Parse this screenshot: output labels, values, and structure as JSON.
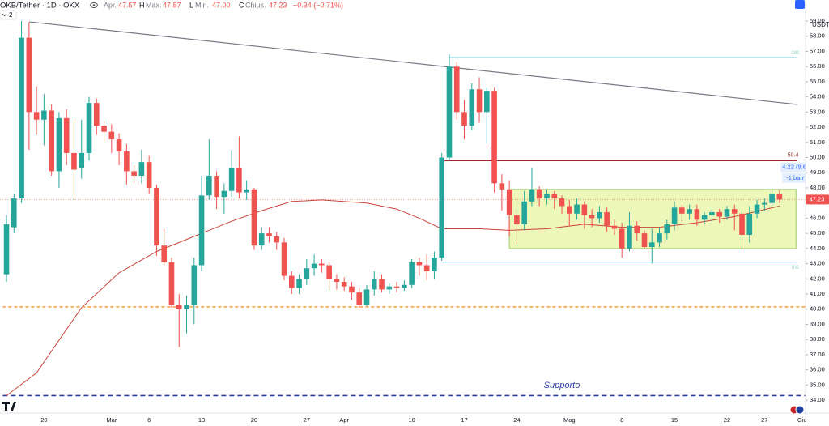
{
  "header": {
    "symbol": "OKB/Tether · 1D · OKX",
    "open_label": "Apr.",
    "high_letter": "H",
    "high_label": "Max.",
    "low_letter": "L",
    "low_label": "Min.",
    "low": "47.00",
    "close_letter": "C",
    "close_label": "Chius.",
    "change": "−0.34 (−0.71%)",
    "indicators": "2"
  },
  "chart_data": {
    "type": "candlestick",
    "currency": "USDT",
    "categories": [
      null,
      null,
      null,
      null,
      null,
      "20",
      null,
      null,
      null,
      null,
      null,
      null,
      null,
      null,
      "Mar",
      null,
      null,
      null,
      null,
      "6",
      null,
      null,
      null,
      null,
      null,
      null,
      "13",
      null,
      null,
      null,
      null,
      null,
      null,
      "20",
      null,
      null,
      null,
      null,
      null,
      null,
      "27",
      null,
      null,
      null,
      null,
      "Apr",
      null,
      null,
      null,
      null,
      null,
      null,
      null,
      null,
      "10",
      null,
      null,
      null,
      null,
      null,
      null,
      "17",
      null,
      null,
      null,
      null,
      null,
      null,
      "24",
      null,
      null,
      null,
      null,
      null,
      null,
      "Mag",
      null,
      null,
      null,
      null,
      null,
      null,
      "8",
      null,
      null,
      null,
      null,
      null,
      null,
      "15",
      null,
      null,
      null,
      null,
      null,
      null,
      "22",
      null,
      null,
      null,
      null,
      "27",
      null,
      null,
      null,
      null,
      "Giu"
    ],
    "open": [
      42.3,
      45.4,
      47.3,
      57.9,
      53.0,
      52.5,
      53.1,
      49.1,
      52.6,
      50.3,
      49.3,
      50.3,
      53.6,
      52.1,
      51.7,
      51.2,
      50.4,
      49.1,
      48.8,
      49.7,
      48.0,
      44.2,
      43.1,
      40.3,
      40.0,
      40.3,
      42.9,
      47.5,
      48.8,
      47.4,
      47.8,
      49.3,
      47.7,
      47.9,
      44.2,
      45.0,
      44.8,
      44.4,
      42.2,
      41.4,
      42.0,
      42.7,
      43.0,
      42.9,
      42.0,
      41.8,
      41.5,
      41.1,
      40.3,
      41.3,
      42.0,
      41.3,
      41.5,
      41.4,
      41.6,
      43.1,
      42.9,
      42.5,
      43.4,
      50.0,
      56.0,
      53.0,
      52.1,
      54.5,
      53.0,
      54.4,
      48.3,
      47.9,
      46.2,
      45.6,
      47.1,
      47.9,
      47.3,
      47.6,
      47.3,
      46.8,
      46.3,
      46.9,
      46.2,
      46.0,
      46.4,
      45.5,
      45.3,
      44.0,
      45.5,
      45.0,
      44.1,
      44.4,
      45.0,
      45.6,
      46.7,
      46.3,
      46.6,
      45.9,
      46.2,
      46.4,
      46.1,
      46.6,
      46.3,
      44.9,
      46.3,
      46.9,
      47.0,
      47.57,
      null,
      null,
      null
    ],
    "high": [
      46.2,
      47.6,
      59.0,
      58.9,
      54.7,
      54.2,
      53.5,
      53.0,
      53.2,
      52.6,
      52.5,
      54.0,
      53.9,
      52.4,
      52.2,
      51.6,
      50.9,
      49.5,
      50.5,
      50.1,
      48.2,
      45.3,
      43.4,
      41.0,
      40.9,
      43.4,
      48.8,
      51.2,
      49.1,
      48.3,
      50.5,
      51.4,
      48.5,
      48.0,
      45.4,
      45.4,
      45.1,
      44.7,
      42.5,
      42.3,
      43.3,
      43.6,
      43.3,
      43.1,
      42.3,
      42.1,
      41.8,
      41.4,
      41.6,
      42.5,
      42.3,
      41.7,
      41.8,
      41.9,
      43.3,
      43.4,
      43.6,
      43.8,
      50.3,
      56.8,
      56.3,
      53.8,
      54.9,
      55.3,
      54.6,
      54.6,
      48.9,
      48.5,
      46.7,
      47.8,
      49.3,
      48.1,
      47.9,
      47.8,
      47.5,
      47.2,
      47.3,
      47.1,
      46.6,
      46.8,
      46.7,
      45.9,
      45.7,
      46.4,
      45.8,
      45.2,
      45.3,
      45.4,
      45.9,
      47.1,
      46.9,
      46.9,
      46.9,
      46.4,
      46.6,
      46.6,
      46.8,
      46.9,
      46.5,
      46.8,
      47.2,
      47.3,
      48.0,
      47.87,
      null,
      null,
      null
    ],
    "low": [
      41.8,
      45.0,
      47.0,
      50.5,
      51.5,
      50.8,
      48.8,
      48.0,
      49.5,
      47.2,
      48.6,
      49.8,
      51.5,
      51.0,
      50.3,
      49.5,
      48.2,
      48.3,
      48.3,
      47.6,
      43.5,
      42.9,
      40.1,
      37.5,
      38.4,
      39.0,
      42.5,
      47.2,
      46.6,
      46.3,
      47.4,
      47.3,
      47.2,
      43.9,
      43.9,
      44.4,
      43.9,
      41.9,
      41.0,
      41.0,
      41.6,
      42.2,
      42.4,
      41.2,
      41.3,
      41.2,
      40.6,
      40.1,
      40.2,
      40.9,
      41.1,
      41.0,
      41.1,
      41.2,
      41.4,
      42.2,
      41.9,
      42.0,
      43.2,
      49.8,
      52.5,
      51.2,
      51.8,
      52.3,
      50.9,
      47.7,
      46.5,
      44.8,
      44.3,
      45.2,
      46.8,
      46.8,
      46.9,
      46.6,
      46.3,
      45.5,
      45.9,
      45.3,
      45.4,
      45.7,
      45.1,
      44.9,
      43.4,
      43.8,
      44.5,
      44.0,
      43.0,
      44.1,
      44.6,
      45.2,
      45.8,
      45.9,
      45.5,
      45.6,
      45.8,
      45.7,
      45.9,
      45.2,
      44.0,
      44.4,
      46.0,
      46.5,
      46.8,
      47.0,
      null,
      null,
      null
    ],
    "close": [
      45.6,
      47.3,
      57.9,
      53.0,
      52.5,
      53.1,
      49.1,
      52.6,
      50.3,
      49.2,
      50.3,
      53.6,
      52.1,
      51.7,
      51.2,
      50.4,
      49.1,
      48.8,
      49.7,
      48.0,
      44.2,
      43.1,
      40.3,
      40.0,
      40.3,
      42.9,
      47.5,
      48.8,
      47.4,
      47.8,
      49.3,
      47.7,
      47.9,
      44.2,
      45.0,
      44.8,
      44.4,
      42.2,
      41.4,
      42.0,
      42.7,
      43.0,
      42.9,
      42.0,
      41.8,
      41.5,
      41.1,
      40.3,
      41.3,
      42.0,
      41.3,
      41.5,
      41.4,
      41.6,
      43.1,
      42.9,
      42.5,
      43.4,
      50.0,
      56.0,
      53.0,
      52.1,
      54.5,
      53.0,
      54.4,
      48.3,
      47.9,
      46.2,
      45.6,
      47.1,
      47.9,
      47.3,
      47.6,
      47.3,
      46.8,
      46.3,
      46.9,
      46.2,
      46.0,
      46.4,
      45.5,
      45.3,
      44.0,
      45.5,
      45.0,
      44.1,
      44.4,
      45.0,
      45.6,
      46.7,
      46.3,
      46.6,
      45.9,
      46.2,
      46.4,
      46.1,
      46.6,
      46.3,
      44.9,
      46.3,
      46.9,
      47.0,
      47.6,
      47.23,
      null,
      null,
      null
    ],
    "up_color": "#26a69a",
    "down_color": "#ef5350",
    "ylim": [
      33.15,
      60.39
    ],
    "yticks": [
      {
        "value": 34,
        "label": "34.00"
      },
      {
        "value": 35,
        "label": "35.00"
      },
      {
        "value": 36,
        "label": "36.00"
      },
      {
        "value": 37,
        "label": "37.00"
      },
      {
        "value": 38,
        "label": "38.00"
      },
      {
        "value": 39,
        "label": "39.00"
      },
      {
        "value": 40,
        "label": "40.00"
      },
      {
        "value": 41,
        "label": "41.00"
      },
      {
        "value": 42,
        "label": "42.00"
      },
      {
        "value": 43,
        "label": "43.00"
      },
      {
        "value": 44,
        "label": "44.00"
      },
      {
        "value": 45,
        "label": "45.00"
      },
      {
        "value": 46,
        "label": "46.00"
      },
      {
        "value": 47,
        "label": "47.00"
      },
      {
        "value": 48,
        "label": "48.00"
      },
      {
        "value": 49,
        "label": "49.00"
      },
      {
        "value": 50,
        "label": "50.00"
      },
      {
        "value": 51,
        "label": "51.00"
      },
      {
        "value": 52,
        "label": "52.00"
      },
      {
        "value": 53,
        "label": "53.00"
      },
      {
        "value": 54,
        "label": "54.00"
      },
      {
        "value": 55,
        "label": "55.00"
      },
      {
        "value": 56,
        "label": "56.00"
      },
      {
        "value": 57,
        "label": "57.00"
      },
      {
        "value": 58,
        "label": "58.00"
      },
      {
        "value": 59,
        "label": "59.00"
      }
    ],
    "grid": false,
    "moving_average": {
      "color": "#c9453c",
      "x": [
        0,
        4,
        10,
        15,
        20,
        26,
        30,
        34,
        38,
        42,
        48,
        52,
        55,
        58,
        63,
        67,
        72,
        77,
        82,
        87,
        92,
        97,
        103
      ],
      "values": [
        34.3,
        35.8,
        40.1,
        42.4,
        43.8,
        45.0,
        45.8,
        46.5,
        47.1,
        47.2,
        47.0,
        46.6,
        46.0,
        45.3,
        45.3,
        45.2,
        45.3,
        45.6,
        45.4,
        45.4,
        45.7,
        46.1,
        46.8
      ]
    },
    "trendline": {
      "color": "#787b86",
      "x": [
        3,
        105.4
      ],
      "values": [
        58.95,
        53.5
      ]
    },
    "levels": [
      {
        "value": 40.15,
        "from": -0.5,
        "to": 106.5,
        "color": "#f57c00",
        "dash": "4 3",
        "width": 1.2
      },
      {
        "value": 34.3,
        "from": -0.5,
        "to": 106.5,
        "color": "#2a3d9e",
        "dash": "6 4",
        "width": 1.6
      },
      {
        "value": 49.8,
        "from": 58,
        "to": 105.3,
        "color": "#9c2a2a",
        "dash": "",
        "width": 1.4
      },
      {
        "value": 56.6,
        "from": 59,
        "to": 105.3,
        "color": "#80deea",
        "dash": "",
        "width": 1.2
      },
      {
        "value": 43.1,
        "from": 58,
        "to": 105.3,
        "color": "#80deea",
        "dash": "",
        "width": 1.2
      }
    ],
    "box": {
      "from": 67,
      "to": 105.2,
      "top": 47.9,
      "bottom": 44.0,
      "fill": "rgba(226,242,140,0.6)",
      "stroke": "#9ccc65"
    },
    "annotations": [
      {
        "text": "Supporto",
        "x": 74,
        "y": 34.95,
        "color": "#2a3d9e",
        "size": 11,
        "italic": true
      },
      {
        "text": "50.4",
        "x": 104.8,
        "y": 50.15,
        "color": "#9c2a2a",
        "size": 7,
        "italic": false
      },
      {
        "text": "100",
        "x": 105.1,
        "y": 56.9,
        "color": "#80cbc4",
        "size": 6,
        "italic": false
      },
      {
        "text": "0.0",
        "x": 105.1,
        "y": 42.75,
        "color": "#80cbc4",
        "size": 6,
        "italic": false
      }
    ],
    "measure": {
      "text": "4.22 (9.6",
      "bars": "-1 barr",
      "x": 103.8,
      "y": 49.35,
      "y2": 48.65
    }
  }
}
